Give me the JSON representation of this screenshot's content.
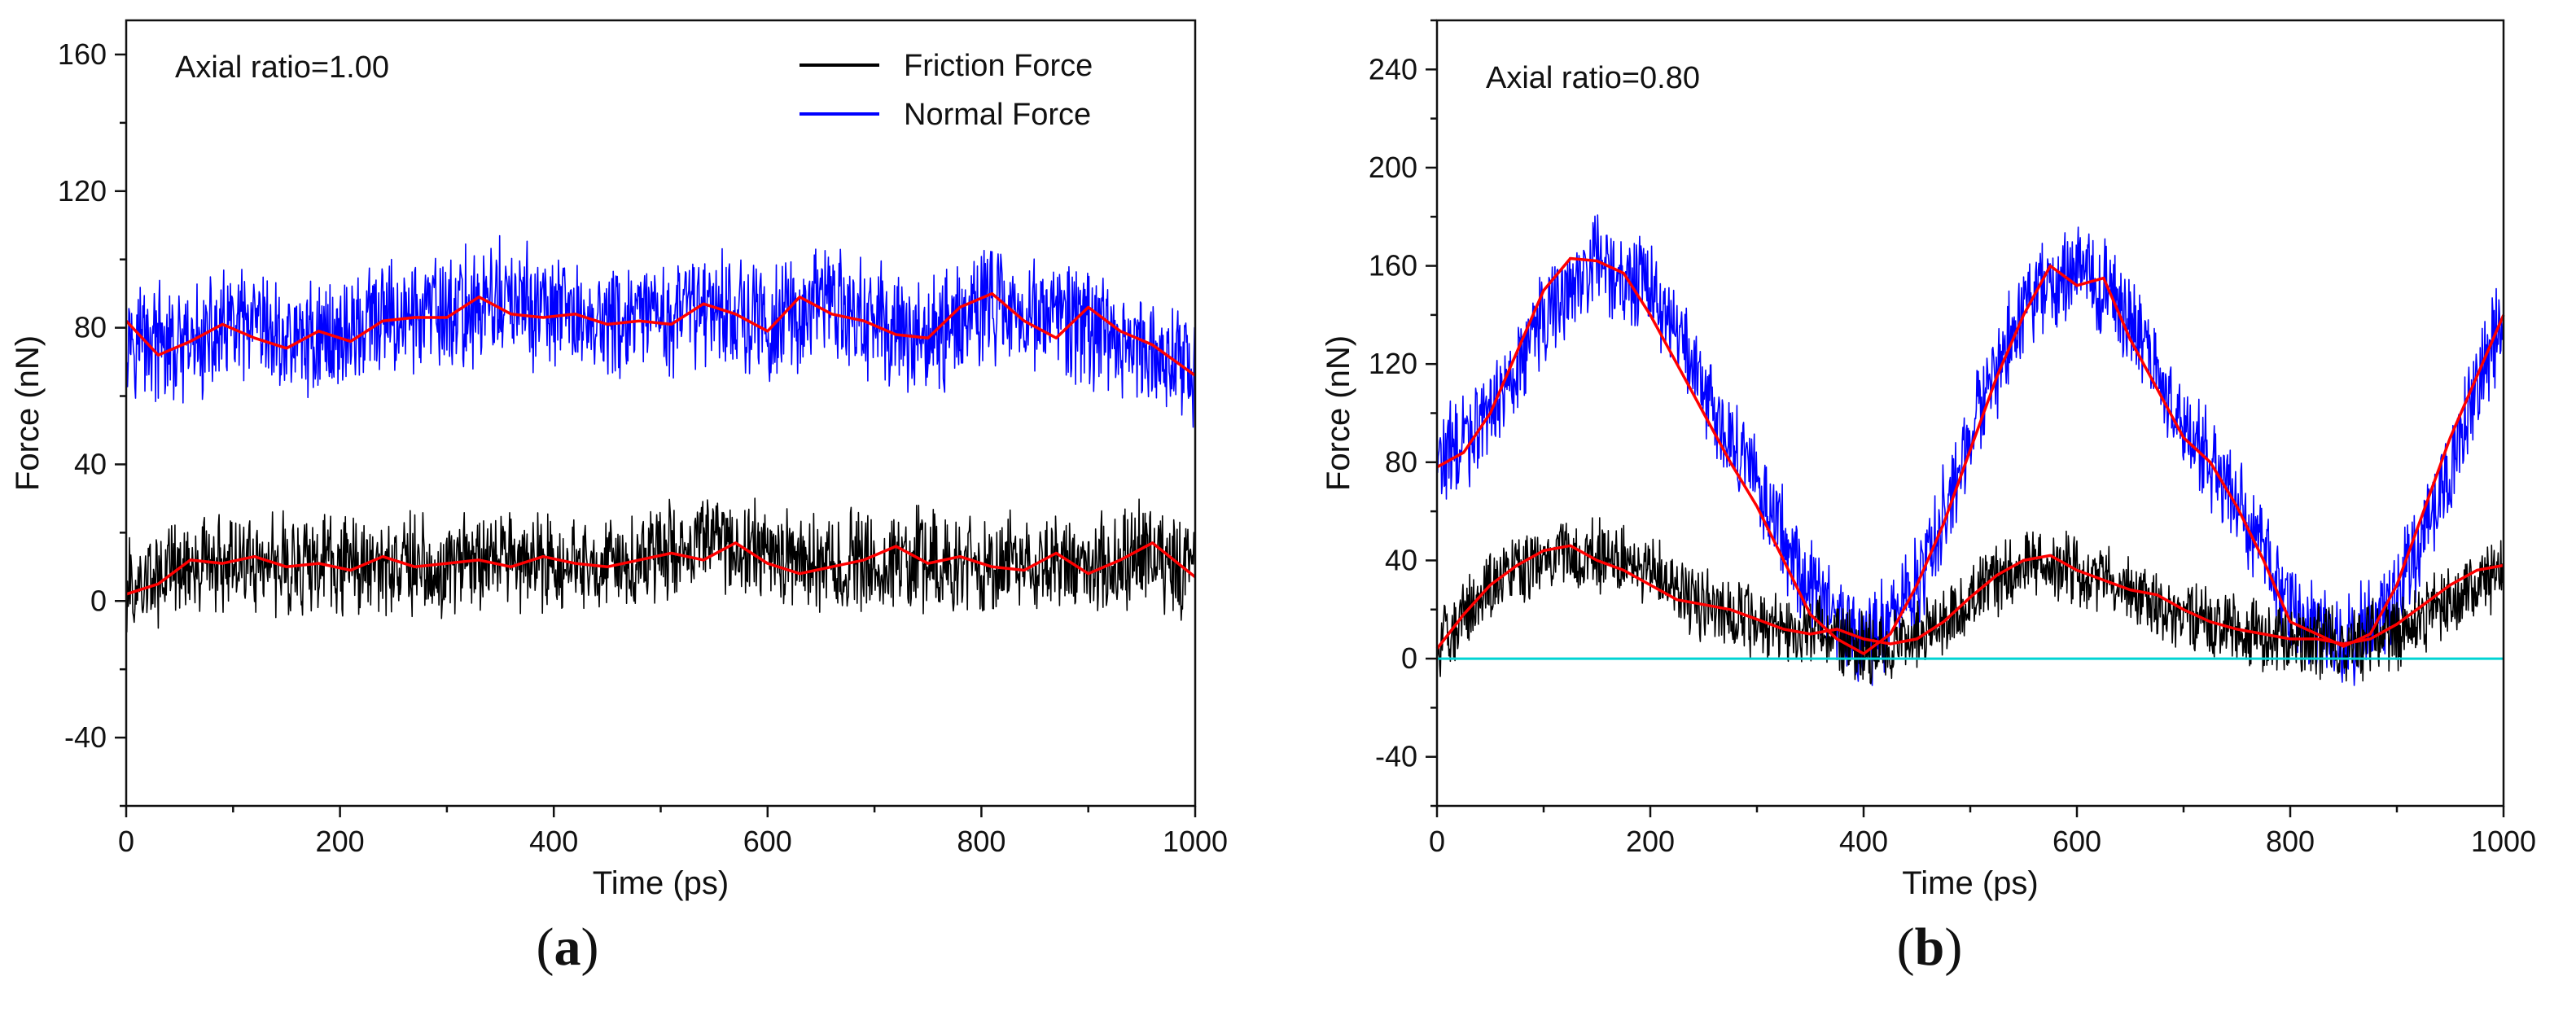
{
  "chart_data": [
    {
      "type": "line",
      "panel_label": "(a)",
      "panel_letter": "a",
      "annotation": "Axial ratio=1.00",
      "xlabel": "Time (ps)",
      "ylabel": "Force (nN)",
      "xlim": [
        0,
        1000
      ],
      "ylim": [
        -60,
        170
      ],
      "xticks": [
        0,
        200,
        400,
        600,
        800,
        1000
      ],
      "yticks": [
        -40,
        0,
        40,
        80,
        120,
        160
      ],
      "legend": {
        "placement": "top-right",
        "entries": [
          "Friction Force",
          "Normal Force"
        ]
      },
      "series": [
        {
          "name": "Normal Force",
          "color": "#0000ff",
          "kind": "raw",
          "x": [
            0,
            50,
            100,
            150,
            200,
            250,
            300,
            350,
            400,
            450,
            500,
            550,
            600,
            650,
            700,
            750,
            800,
            850,
            900,
            950,
            1000
          ],
          "y": [
            80,
            72,
            80,
            76,
            78,
            83,
            84,
            88,
            84,
            81,
            82,
            88,
            80,
            88,
            82,
            76,
            88,
            84,
            80,
            74,
            68
          ],
          "noise": 14
        },
        {
          "name": "Friction Force",
          "color": "#000000",
          "kind": "raw",
          "x": [
            0,
            50,
            100,
            150,
            200,
            250,
            300,
            350,
            400,
            450,
            500,
            550,
            600,
            650,
            700,
            750,
            800,
            850,
            900,
            950,
            1000
          ],
          "y": [
            2,
            10,
            12,
            11,
            10,
            11,
            10,
            11,
            12,
            11,
            13,
            16,
            14,
            10,
            12,
            13,
            11,
            12,
            10,
            14,
            8
          ],
          "noise": 12
        },
        {
          "name": "Normal Force (smoothed)",
          "color": "#ff0000",
          "kind": "smooth",
          "x": [
            0,
            30,
            60,
            90,
            120,
            150,
            180,
            210,
            240,
            270,
            300,
            330,
            360,
            390,
            420,
            450,
            480,
            510,
            540,
            570,
            600,
            630,
            660,
            690,
            720,
            750,
            780,
            810,
            840,
            870,
            900,
            930,
            960,
            1000
          ],
          "y": [
            82,
            72,
            76,
            81,
            77,
            74,
            79,
            76,
            82,
            83,
            83,
            89,
            84,
            83,
            84,
            81,
            82,
            81,
            87,
            84,
            79,
            89,
            84,
            82,
            78,
            77,
            86,
            90,
            82,
            77,
            86,
            79,
            75,
            66
          ]
        },
        {
          "name": "Friction Force (smoothed)",
          "color": "#ff0000",
          "kind": "smooth",
          "x": [
            0,
            30,
            60,
            90,
            120,
            150,
            180,
            210,
            240,
            270,
            300,
            330,
            360,
            390,
            420,
            450,
            480,
            510,
            540,
            570,
            600,
            630,
            660,
            690,
            720,
            750,
            780,
            810,
            840,
            870,
            900,
            930,
            960,
            1000
          ],
          "y": [
            2,
            5,
            12,
            11,
            13,
            10,
            11,
            9,
            13,
            10,
            11,
            12,
            10,
            13,
            11,
            10,
            12,
            14,
            12,
            17,
            11,
            8,
            10,
            12,
            16,
            11,
            13,
            10,
            9,
            14,
            8,
            12,
            17,
            7
          ]
        }
      ]
    },
    {
      "type": "line",
      "panel_label": "(b)",
      "panel_letter": "b",
      "annotation": "Axial ratio=0.80",
      "xlabel": "Time (ps)",
      "ylabel": "Force (nN)",
      "xlim": [
        0,
        1000
      ],
      "ylim": [
        -60,
        260
      ],
      "xticks": [
        0,
        200,
        400,
        600,
        800,
        1000
      ],
      "yticks": [
        -40,
        0,
        40,
        80,
        120,
        160,
        200,
        240
      ],
      "legend": null,
      "series": [
        {
          "name": "Normal Force",
          "color": "#0000ff",
          "kind": "raw",
          "x": [
            0,
            50,
            100,
            150,
            200,
            250,
            300,
            350,
            400,
            450,
            500,
            550,
            600,
            650,
            700,
            750,
            800,
            850,
            900,
            950,
            1000
          ],
          "y": [
            78,
            100,
            140,
            162,
            150,
            110,
            70,
            30,
            5,
            30,
            90,
            145,
            160,
            140,
            95,
            65,
            20,
            5,
            25,
            80,
            140
          ],
          "noise": 16
        },
        {
          "name": "Friction Force",
          "color": "#000000",
          "kind": "raw",
          "x": [
            0,
            50,
            100,
            150,
            200,
            250,
            300,
            350,
            400,
            450,
            500,
            550,
            600,
            650,
            700,
            750,
            800,
            850,
            900,
            950,
            1000
          ],
          "y": [
            5,
            30,
            42,
            42,
            35,
            22,
            14,
            12,
            5,
            8,
            25,
            40,
            35,
            28,
            18,
            12,
            8,
            6,
            10,
            25,
            35
          ],
          "noise": 12
        },
        {
          "name": "Baseline",
          "color": "#00d4d4",
          "kind": "baseline",
          "x": [
            0,
            1000
          ],
          "y": [
            0,
            0
          ]
        },
        {
          "name": "Normal Force (smoothed)",
          "color": "#ff0000",
          "kind": "smooth",
          "x": [
            0,
            25,
            50,
            75,
            100,
            125,
            150,
            175,
            200,
            225,
            250,
            275,
            300,
            325,
            350,
            375,
            400,
            425,
            450,
            475,
            500,
            525,
            550,
            575,
            600,
            625,
            650,
            675,
            700,
            725,
            750,
            775,
            800,
            825,
            850,
            875,
            900,
            925,
            950,
            975,
            1000
          ],
          "y": [
            78,
            84,
            100,
            125,
            150,
            163,
            162,
            157,
            140,
            120,
            100,
            80,
            62,
            40,
            18,
            8,
            2,
            10,
            30,
            55,
            85,
            115,
            140,
            160,
            152,
            155,
            130,
            110,
            90,
            80,
            62,
            40,
            15,
            10,
            5,
            10,
            30,
            60,
            90,
            115,
            140
          ]
        },
        {
          "name": "Friction Force (smoothed)",
          "color": "#ff0000",
          "kind": "smooth",
          "x": [
            0,
            25,
            50,
            75,
            100,
            125,
            150,
            175,
            200,
            225,
            250,
            275,
            300,
            325,
            350,
            375,
            400,
            425,
            450,
            475,
            500,
            525,
            550,
            575,
            600,
            625,
            650,
            675,
            700,
            725,
            750,
            775,
            800,
            825,
            850,
            875,
            900,
            925,
            950,
            975,
            1000
          ],
          "y": [
            4,
            18,
            30,
            38,
            44,
            46,
            40,
            36,
            30,
            24,
            22,
            20,
            16,
            12,
            10,
            12,
            8,
            6,
            8,
            15,
            25,
            34,
            40,
            42,
            36,
            32,
            28,
            26,
            20,
            15,
            12,
            10,
            8,
            8,
            6,
            8,
            14,
            22,
            30,
            36,
            38
          ]
        }
      ]
    }
  ]
}
